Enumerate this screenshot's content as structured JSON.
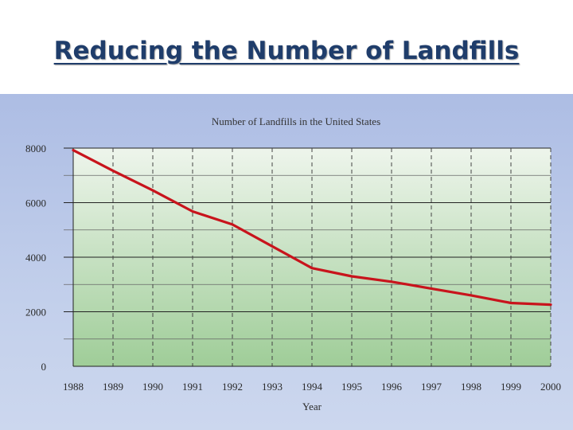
{
  "slide": {
    "title": "Reducing the Number of Landfills"
  },
  "chart_data": {
    "type": "line",
    "title": "Number of Landfills in the United States",
    "xlabel": "Year",
    "ylabel": "",
    "categories": [
      "1988",
      "1989",
      "1990",
      "1991",
      "1992",
      "1993",
      "1994",
      "1995",
      "1996",
      "1997",
      "1998",
      "1999",
      "2000"
    ],
    "y_ticks": [
      "0",
      "2000",
      "4000",
      "6000",
      "8000"
    ],
    "ylim": [
      0,
      8000
    ],
    "grid": true,
    "series": [
      {
        "values": [
          7924,
          7170,
          6450,
          5680,
          5200,
          4400,
          3600,
          3300,
          3100,
          2850,
          2600,
          2320,
          2260
        ],
        "color": "#c8141c"
      }
    ],
    "colors": {
      "plot_top": "#eef5ec",
      "plot_bottom": "#9fcd98",
      "line": "#c8141c"
    }
  }
}
